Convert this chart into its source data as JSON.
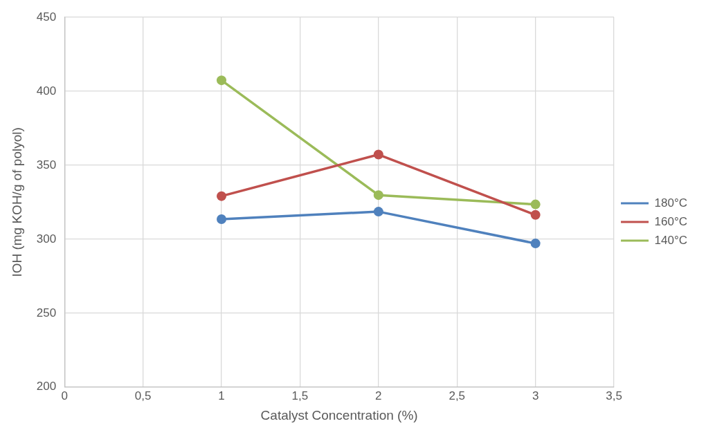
{
  "chart_data": {
    "type": "line",
    "xlabel": "Catalyst Concentration (%)",
    "ylabel": "IOH (mg KOH/g of polyol)",
    "x": [
      1,
      2,
      3
    ],
    "series": [
      {
        "name": "180°C",
        "color": "#4f81bd",
        "values": [
          313.5,
          318.6,
          297.1
        ]
      },
      {
        "name": "160°C",
        "color": "#c0504d",
        "values": [
          329.1,
          357.2,
          316.4
        ]
      },
      {
        "name": "140°C",
        "color": "#9bbb59",
        "values": [
          407.4,
          329.8,
          323.5
        ]
      }
    ],
    "xlim": [
      0,
      3.5
    ],
    "xticks": [
      0,
      {
        "value": 0.5,
        "label": "0,5"
      },
      1,
      {
        "value": 1.5,
        "label": "1,5"
      },
      2,
      {
        "value": 2.5,
        "label": "2,5"
      },
      3,
      {
        "value": 3.5,
        "label": "3,5"
      }
    ],
    "ylim": [
      200,
      450
    ],
    "yticks": [
      200,
      250,
      300,
      350,
      400,
      450
    ],
    "grid": true,
    "legend": "right",
    "marker": "circle",
    "line_style": "solid"
  }
}
